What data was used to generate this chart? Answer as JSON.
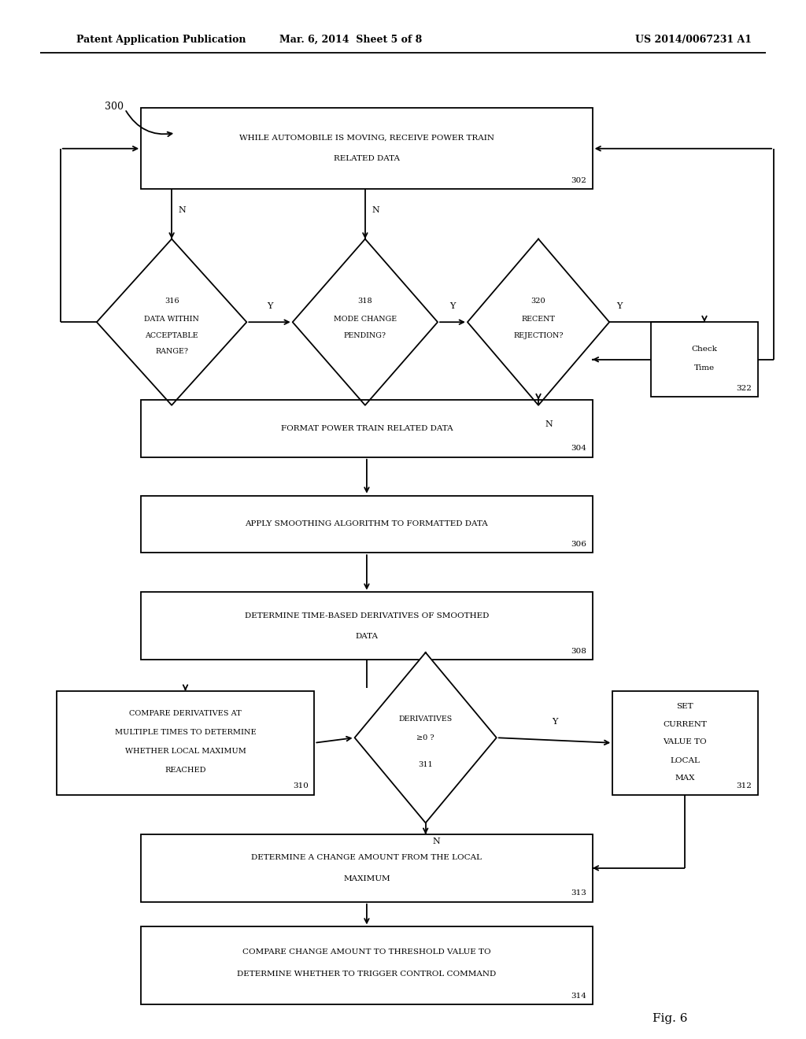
{
  "bg_color": "#ffffff",
  "line_color": "#000000",
  "text_color": "#000000",
  "header_left": "Patent Application Publication",
  "header_mid": "Mar. 6, 2014  Sheet 5 of 8",
  "header_right": "US 2014/0067231 A1",
  "figure_label": "Fig. 6",
  "ref_300": "300",
  "b302": [
    0.175,
    0.818,
    0.56,
    0.078
  ],
  "b304": [
    0.175,
    0.56,
    0.56,
    0.055
  ],
  "b306": [
    0.175,
    0.468,
    0.56,
    0.055
  ],
  "b308": [
    0.175,
    0.365,
    0.56,
    0.065
  ],
  "b310": [
    0.07,
    0.235,
    0.32,
    0.1
  ],
  "b312": [
    0.76,
    0.235,
    0.18,
    0.1
  ],
  "b313": [
    0.175,
    0.132,
    0.56,
    0.065
  ],
  "b314": [
    0.175,
    0.033,
    0.56,
    0.075
  ],
  "b322": [
    0.808,
    0.618,
    0.132,
    0.072
  ],
  "d316": [
    0.213,
    0.69,
    0.093,
    0.08
  ],
  "d318": [
    0.453,
    0.69,
    0.09,
    0.08
  ],
  "d320": [
    0.668,
    0.69,
    0.088,
    0.08
  ],
  "d311": [
    0.528,
    0.29,
    0.088,
    0.082
  ]
}
